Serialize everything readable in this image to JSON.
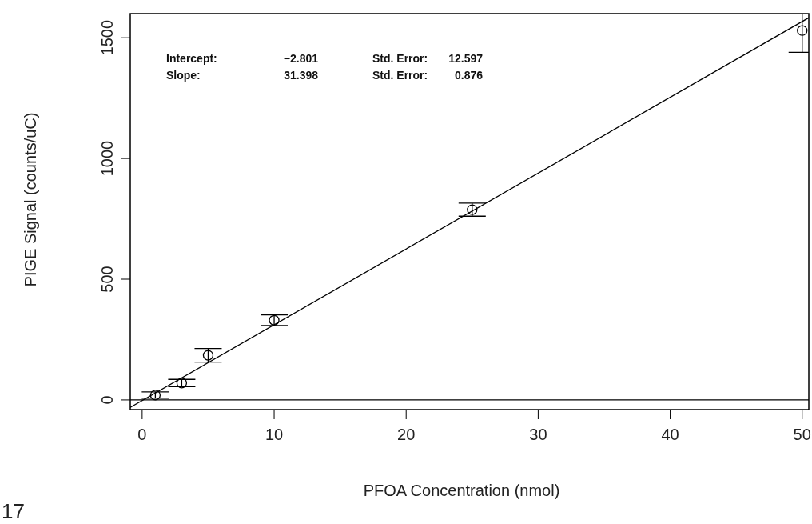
{
  "chart_data": {
    "type": "scatter",
    "xlabel": "PFOA Concentration (nmol)",
    "ylabel": "PIGE Signal (counts/uC)",
    "xlim": [
      -0.9,
      50.5
    ],
    "ylim": [
      -40,
      1600
    ],
    "xticks": [
      0,
      10,
      20,
      30,
      40,
      50
    ],
    "yticks": [
      0,
      500,
      1000,
      1500
    ],
    "grid": false,
    "series": [
      {
        "color": "#000000",
        "marker": "circle",
        "x": [
          1,
          3,
          5,
          10,
          25,
          50
        ],
        "values": [
          20,
          70,
          185,
          330,
          788,
          1530
        ],
        "errors": [
          13,
          15,
          28,
          22,
          27,
          [
            1440,
            1600
          ]
        ]
      },
      {
        "type": "line",
        "color": "#000000",
        "line_style": "solid",
        "x": [
          -0.9,
          50.5
        ],
        "values": [
          -31,
          1583
        ]
      }
    ],
    "ref_lines": [
      {
        "axis": "y",
        "value": 0,
        "color": "#000000"
      }
    ],
    "annotations": [
      "Intercept:",
      "−2.801",
      "Std. Error:",
      "12.597",
      "Slope:",
      "31.398",
      "Std. Error:",
      "0.876",
      "17"
    ]
  }
}
